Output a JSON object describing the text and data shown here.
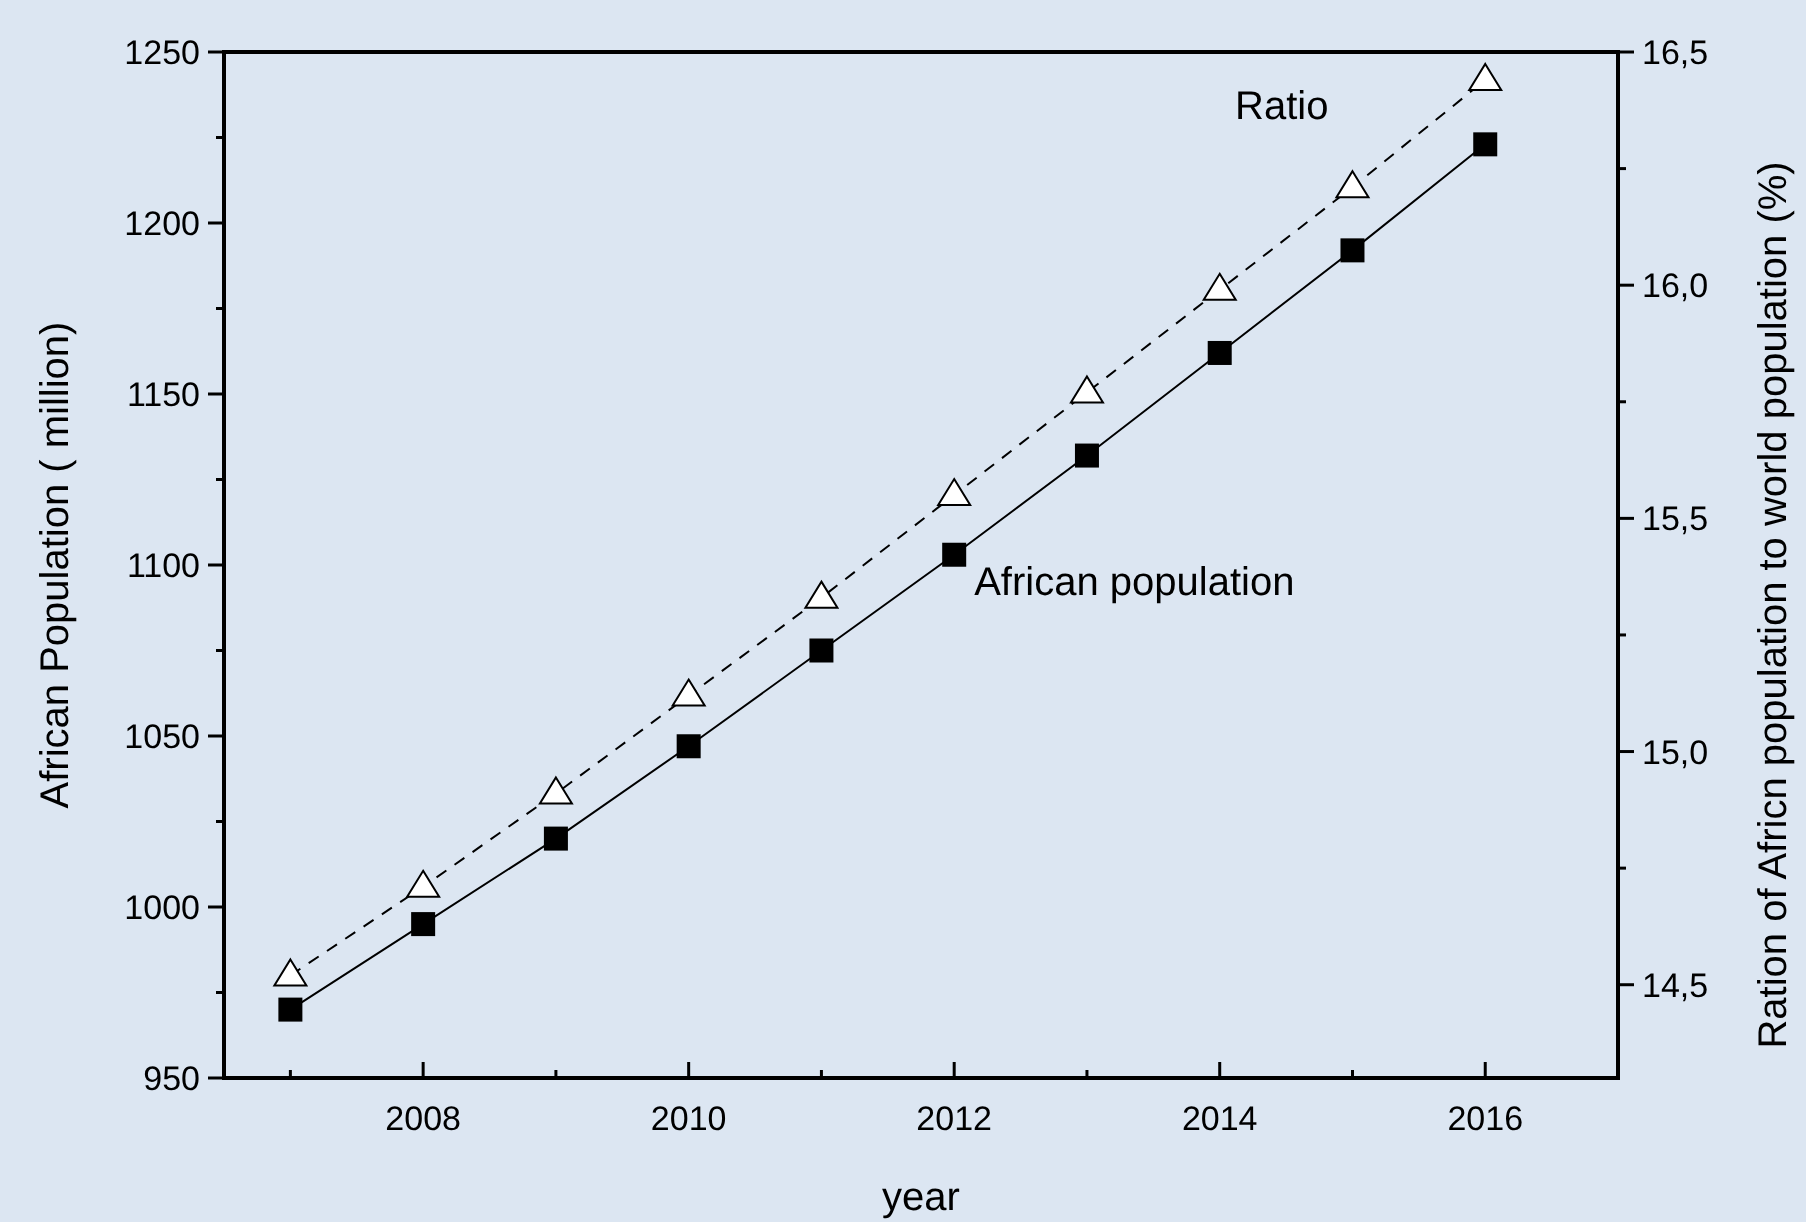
{
  "chart_data": {
    "type": "line",
    "xlabel": "year",
    "ylabel": "African Population ( million)",
    "y2label": "Ration of Africn population to world population (%)",
    "x": [
      2007,
      2008,
      2009,
      2010,
      2011,
      2012,
      2013,
      2014,
      2015,
      2016
    ],
    "series": [
      {
        "name": "African population",
        "color": "#000000",
        "marker": "square",
        "line_style": "solid",
        "values": [
          970,
          995,
          1020,
          1047,
          1075,
          1103,
          1132,
          1162,
          1192,
          1223
        ]
      },
      {
        "name": "Ratio",
        "color": "#000000",
        "marker": "triangle",
        "line_style": "dashed",
        "axis": "y2",
        "values": [
          14.52,
          14.71,
          14.91,
          15.12,
          15.33,
          15.55,
          15.77,
          15.99,
          16.21,
          16.44
        ]
      }
    ],
    "xlim": [
      2006.5,
      2017
    ],
    "xticks": [
      {
        "value": 2007,
        "label": null
      },
      2008,
      {
        "value": 2009,
        "label": null
      },
      2010,
      {
        "value": 2011,
        "label": null
      },
      2012,
      {
        "value": 2013,
        "label": null
      },
      2014,
      {
        "value": 2015,
        "label": null
      },
      2016
    ],
    "ylim": [
      950,
      1250
    ],
    "yticks": [
      950,
      {
        "value": 975,
        "label": null
      },
      1000,
      {
        "value": 1025,
        "label": null
      },
      1050,
      {
        "value": 1075,
        "label": null
      },
      1100,
      {
        "value": 1125,
        "label": null
      },
      1150,
      {
        "value": 1175,
        "label": null
      },
      1200,
      {
        "value": 1225,
        "label": null
      },
      1250
    ],
    "y2lim": [
      14.3,
      16.5
    ],
    "y2ticks": [
      {
        "value": 14.5,
        "label": "14,5"
      },
      {
        "value": 14.75,
        "label": null
      },
      {
        "value": 15,
        "label": "15,0"
      },
      {
        "value": 15.25,
        "label": null
      },
      {
        "value": 15.5,
        "label": "15,5"
      },
      {
        "value": 15.75,
        "label": null
      },
      {
        "value": 16,
        "label": "16,0"
      },
      {
        "value": 16.25,
        "label": null
      },
      {
        "value": 16.5,
        "label": "16,5"
      }
    ],
    "grid": false
  }
}
